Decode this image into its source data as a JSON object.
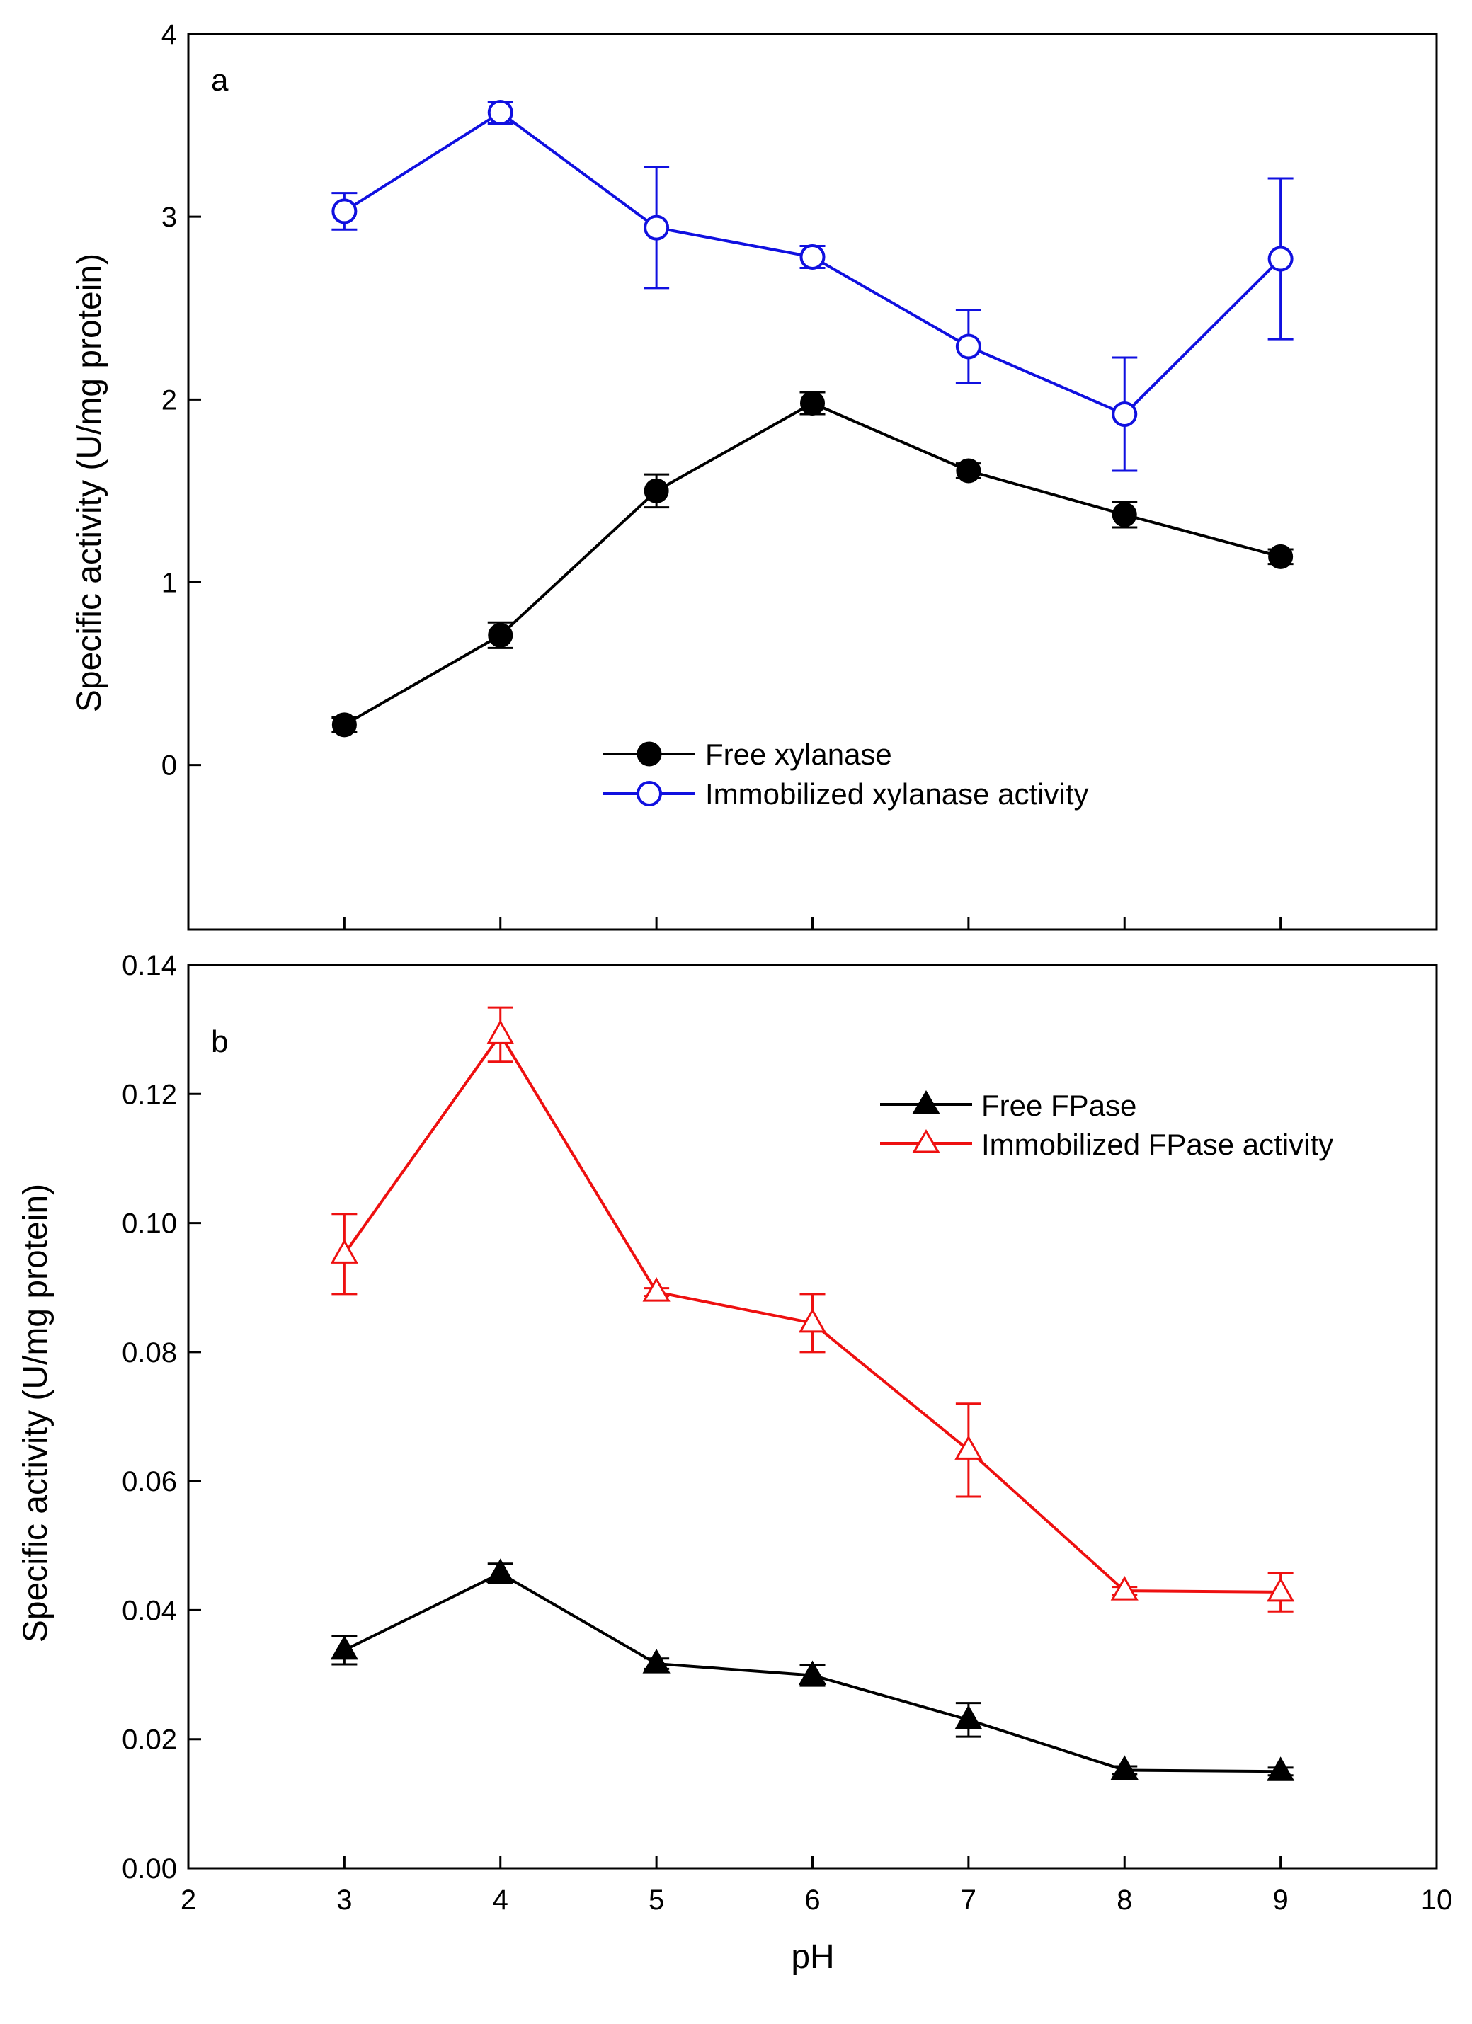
{
  "chart_data": [
    {
      "type": "line",
      "panel": "a",
      "title": "",
      "xlabel": "",
      "ylabel": "Specific activity (U/mg protein)",
      "xlim": [
        2,
        10
      ],
      "ylim": [
        -0.9,
        4
      ],
      "yticks": [
        0,
        1,
        2,
        3,
        4
      ],
      "yticklabels": [
        "0",
        "1",
        "2",
        "3",
        "4"
      ],
      "grid": false,
      "legend_position": "lower-center",
      "series": [
        {
          "name": "Free xylanase",
          "color": "#000000",
          "marker": "circle-filled",
          "x": [
            3,
            4,
            5,
            6,
            7,
            8,
            9
          ],
          "values": [
            0.22,
            0.71,
            1.5,
            1.98,
            1.61,
            1.37,
            1.14
          ],
          "errors": [
            0.04,
            0.07,
            0.09,
            0.06,
            0.04,
            0.07,
            0.04
          ]
        },
        {
          "name": "Immobilized xylanase activity",
          "color": "#1010e0",
          "marker": "circle-open",
          "x": [
            3,
            4,
            5,
            6,
            7,
            8,
            9
          ],
          "values": [
            3.03,
            3.57,
            2.94,
            2.78,
            2.29,
            1.92,
            2.77
          ],
          "errors": [
            0.1,
            0.06,
            0.33,
            0.06,
            0.2,
            0.31,
            0.44
          ]
        }
      ]
    },
    {
      "type": "line",
      "panel": "b",
      "title": "",
      "xlabel": "pH",
      "ylabel": "Specific activity (U/mg protein)",
      "xlim": [
        2,
        10
      ],
      "ylim": [
        0,
        0.14
      ],
      "xticks": [
        2,
        3,
        4,
        5,
        6,
        7,
        8,
        9,
        10
      ],
      "xticklabels": [
        "2",
        "3",
        "4",
        "5",
        "6",
        "7",
        "8",
        "9",
        "10"
      ],
      "yticks": [
        0,
        0.02,
        0.04,
        0.06,
        0.08,
        0.1,
        0.12,
        0.14
      ],
      "yticklabels": [
        "0.00",
        "0.02",
        "0.04",
        "0.06",
        "0.08",
        "0.10",
        "0.12",
        "0.14"
      ],
      "grid": false,
      "legend_position": "top-right",
      "series": [
        {
          "name": "Free FPase",
          "color": "#000000",
          "marker": "triangle-filled",
          "x": [
            3,
            4,
            5,
            6,
            7,
            8,
            9
          ],
          "values": [
            0.0338,
            0.0457,
            0.0317,
            0.0299,
            0.023,
            0.0152,
            0.015
          ],
          "errors": [
            0.0022,
            0.0015,
            0.0008,
            0.0016,
            0.0026,
            0.0006,
            0.0006
          ]
        },
        {
          "name": "Immobilized FPase activity",
          "color": "#ee1010",
          "marker": "triangle-open",
          "x": [
            3,
            4,
            5,
            6,
            7,
            8,
            9
          ],
          "values": [
            0.0952,
            0.1292,
            0.0893,
            0.0845,
            0.0648,
            0.043,
            0.0428
          ],
          "errors": [
            0.0062,
            0.0042,
            0.0006,
            0.0045,
            0.0072,
            0.0006,
            0.003
          ]
        }
      ]
    }
  ]
}
